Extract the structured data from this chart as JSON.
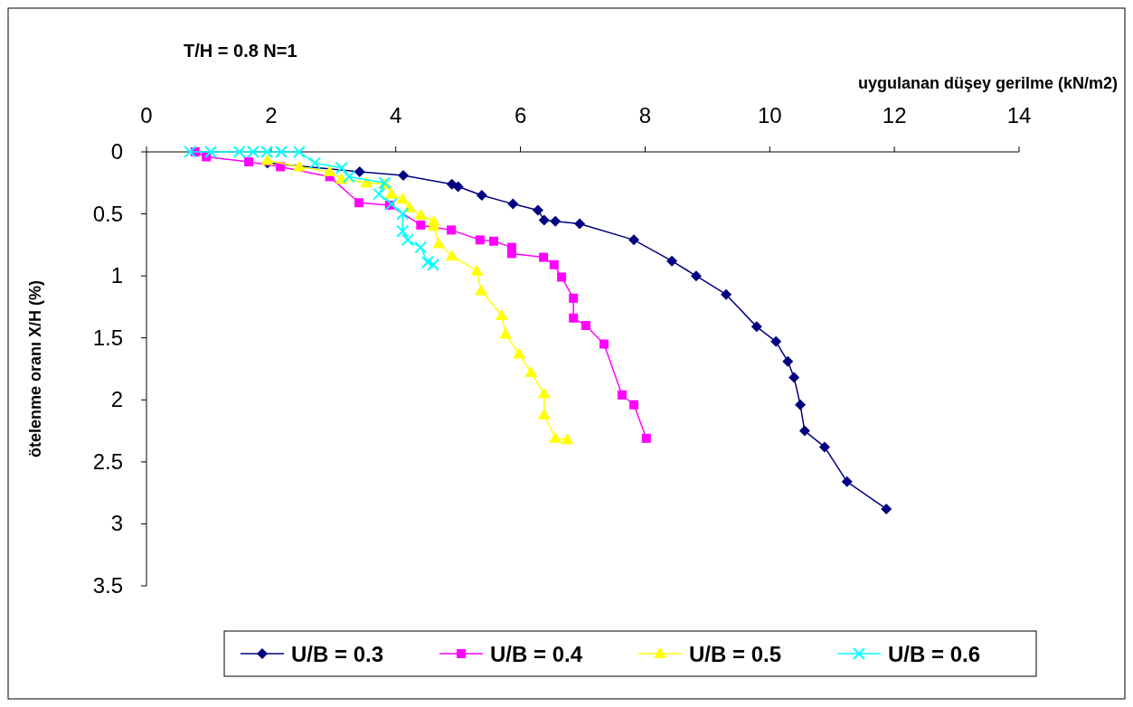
{
  "chart_data": {
    "type": "line",
    "title": "T/H = 0.8   N=1",
    "xlabel": "uygulanan düşey gerilme  (kN/m2)",
    "ylabel": "ötelenme oranı X/H (%)",
    "xlim": [
      0,
      14
    ],
    "xticks": [
      0,
      2,
      4,
      6,
      8,
      10,
      12,
      14
    ],
    "ylim": [
      3.5,
      0
    ],
    "yticks": [
      0,
      0.5,
      1,
      1.5,
      2,
      2.5,
      3,
      3.5
    ],
    "grid": false,
    "legend": "bottom",
    "line_style": "solid",
    "series": [
      {
        "name": "U/B = 0.3",
        "color": "#000080",
        "marker": "diamond",
        "x": [
          1.94,
          3.42,
          4.12,
          4.9,
          5.0,
          5.38,
          5.88,
          6.28,
          6.38,
          6.56,
          6.95,
          7.82,
          8.43,
          8.82,
          9.3,
          9.79,
          10.1,
          10.29,
          10.39,
          10.49,
          10.56,
          10.88,
          11.24,
          11.87
        ],
        "values": [
          0.09,
          0.16,
          0.19,
          0.26,
          0.28,
          0.35,
          0.42,
          0.47,
          0.55,
          0.56,
          0.58,
          0.71,
          0.88,
          1.0,
          1.15,
          1.41,
          1.53,
          1.69,
          1.82,
          2.04,
          2.25,
          2.38,
          2.66,
          2.88
        ]
      },
      {
        "name": "U/B = 0.4",
        "color": "#ff00ff",
        "marker": "square",
        "x": [
          0.78,
          0.96,
          1.64,
          2.15,
          2.94,
          3.41,
          3.9,
          4.4,
          4.89,
          5.35,
          5.57,
          5.86,
          5.86,
          6.37,
          6.54,
          6.66,
          6.85,
          6.85,
          7.05,
          7.34,
          7.63,
          7.82,
          8.02
        ],
        "values": [
          0.0,
          0.04,
          0.08,
          0.12,
          0.2,
          0.41,
          0.43,
          0.59,
          0.63,
          0.71,
          0.72,
          0.77,
          0.82,
          0.85,
          0.91,
          1.01,
          1.18,
          1.34,
          1.4,
          1.55,
          1.96,
          2.04,
          2.31
        ]
      },
      {
        "name": "U/B = 0.5",
        "color": "#ffff00",
        "marker": "triangle",
        "x": [
          1.94,
          2.45,
          2.94,
          3.13,
          3.53,
          3.83,
          3.93,
          4.11,
          4.22,
          4.4,
          4.61,
          4.61,
          4.69,
          4.9,
          5.3,
          5.37,
          5.7,
          5.76,
          5.98,
          6.17,
          6.38,
          6.38,
          6.56,
          6.75
        ],
        "values": [
          0.07,
          0.12,
          0.16,
          0.22,
          0.25,
          0.26,
          0.34,
          0.38,
          0.45,
          0.51,
          0.56,
          0.6,
          0.74,
          0.84,
          0.96,
          1.12,
          1.32,
          1.47,
          1.63,
          1.78,
          1.95,
          2.12,
          2.31,
          2.32
        ]
      },
      {
        "name": "U/B = 0.6",
        "color": "#00ffff",
        "marker": "cross",
        "x": [
          0.7,
          1.03,
          1.49,
          1.71,
          1.93,
          2.16,
          2.45,
          2.7,
          3.13,
          3.25,
          3.82,
          3.73,
          3.93,
          4.11,
          4.11,
          4.19,
          4.4,
          4.51,
          4.6
        ],
        "values": [
          0.0,
          0.0,
          0.0,
          0.0,
          0.0,
          0.0,
          0.0,
          0.09,
          0.13,
          0.2,
          0.25,
          0.34,
          0.42,
          0.5,
          0.64,
          0.71,
          0.77,
          0.89,
          0.91
        ]
      }
    ]
  }
}
